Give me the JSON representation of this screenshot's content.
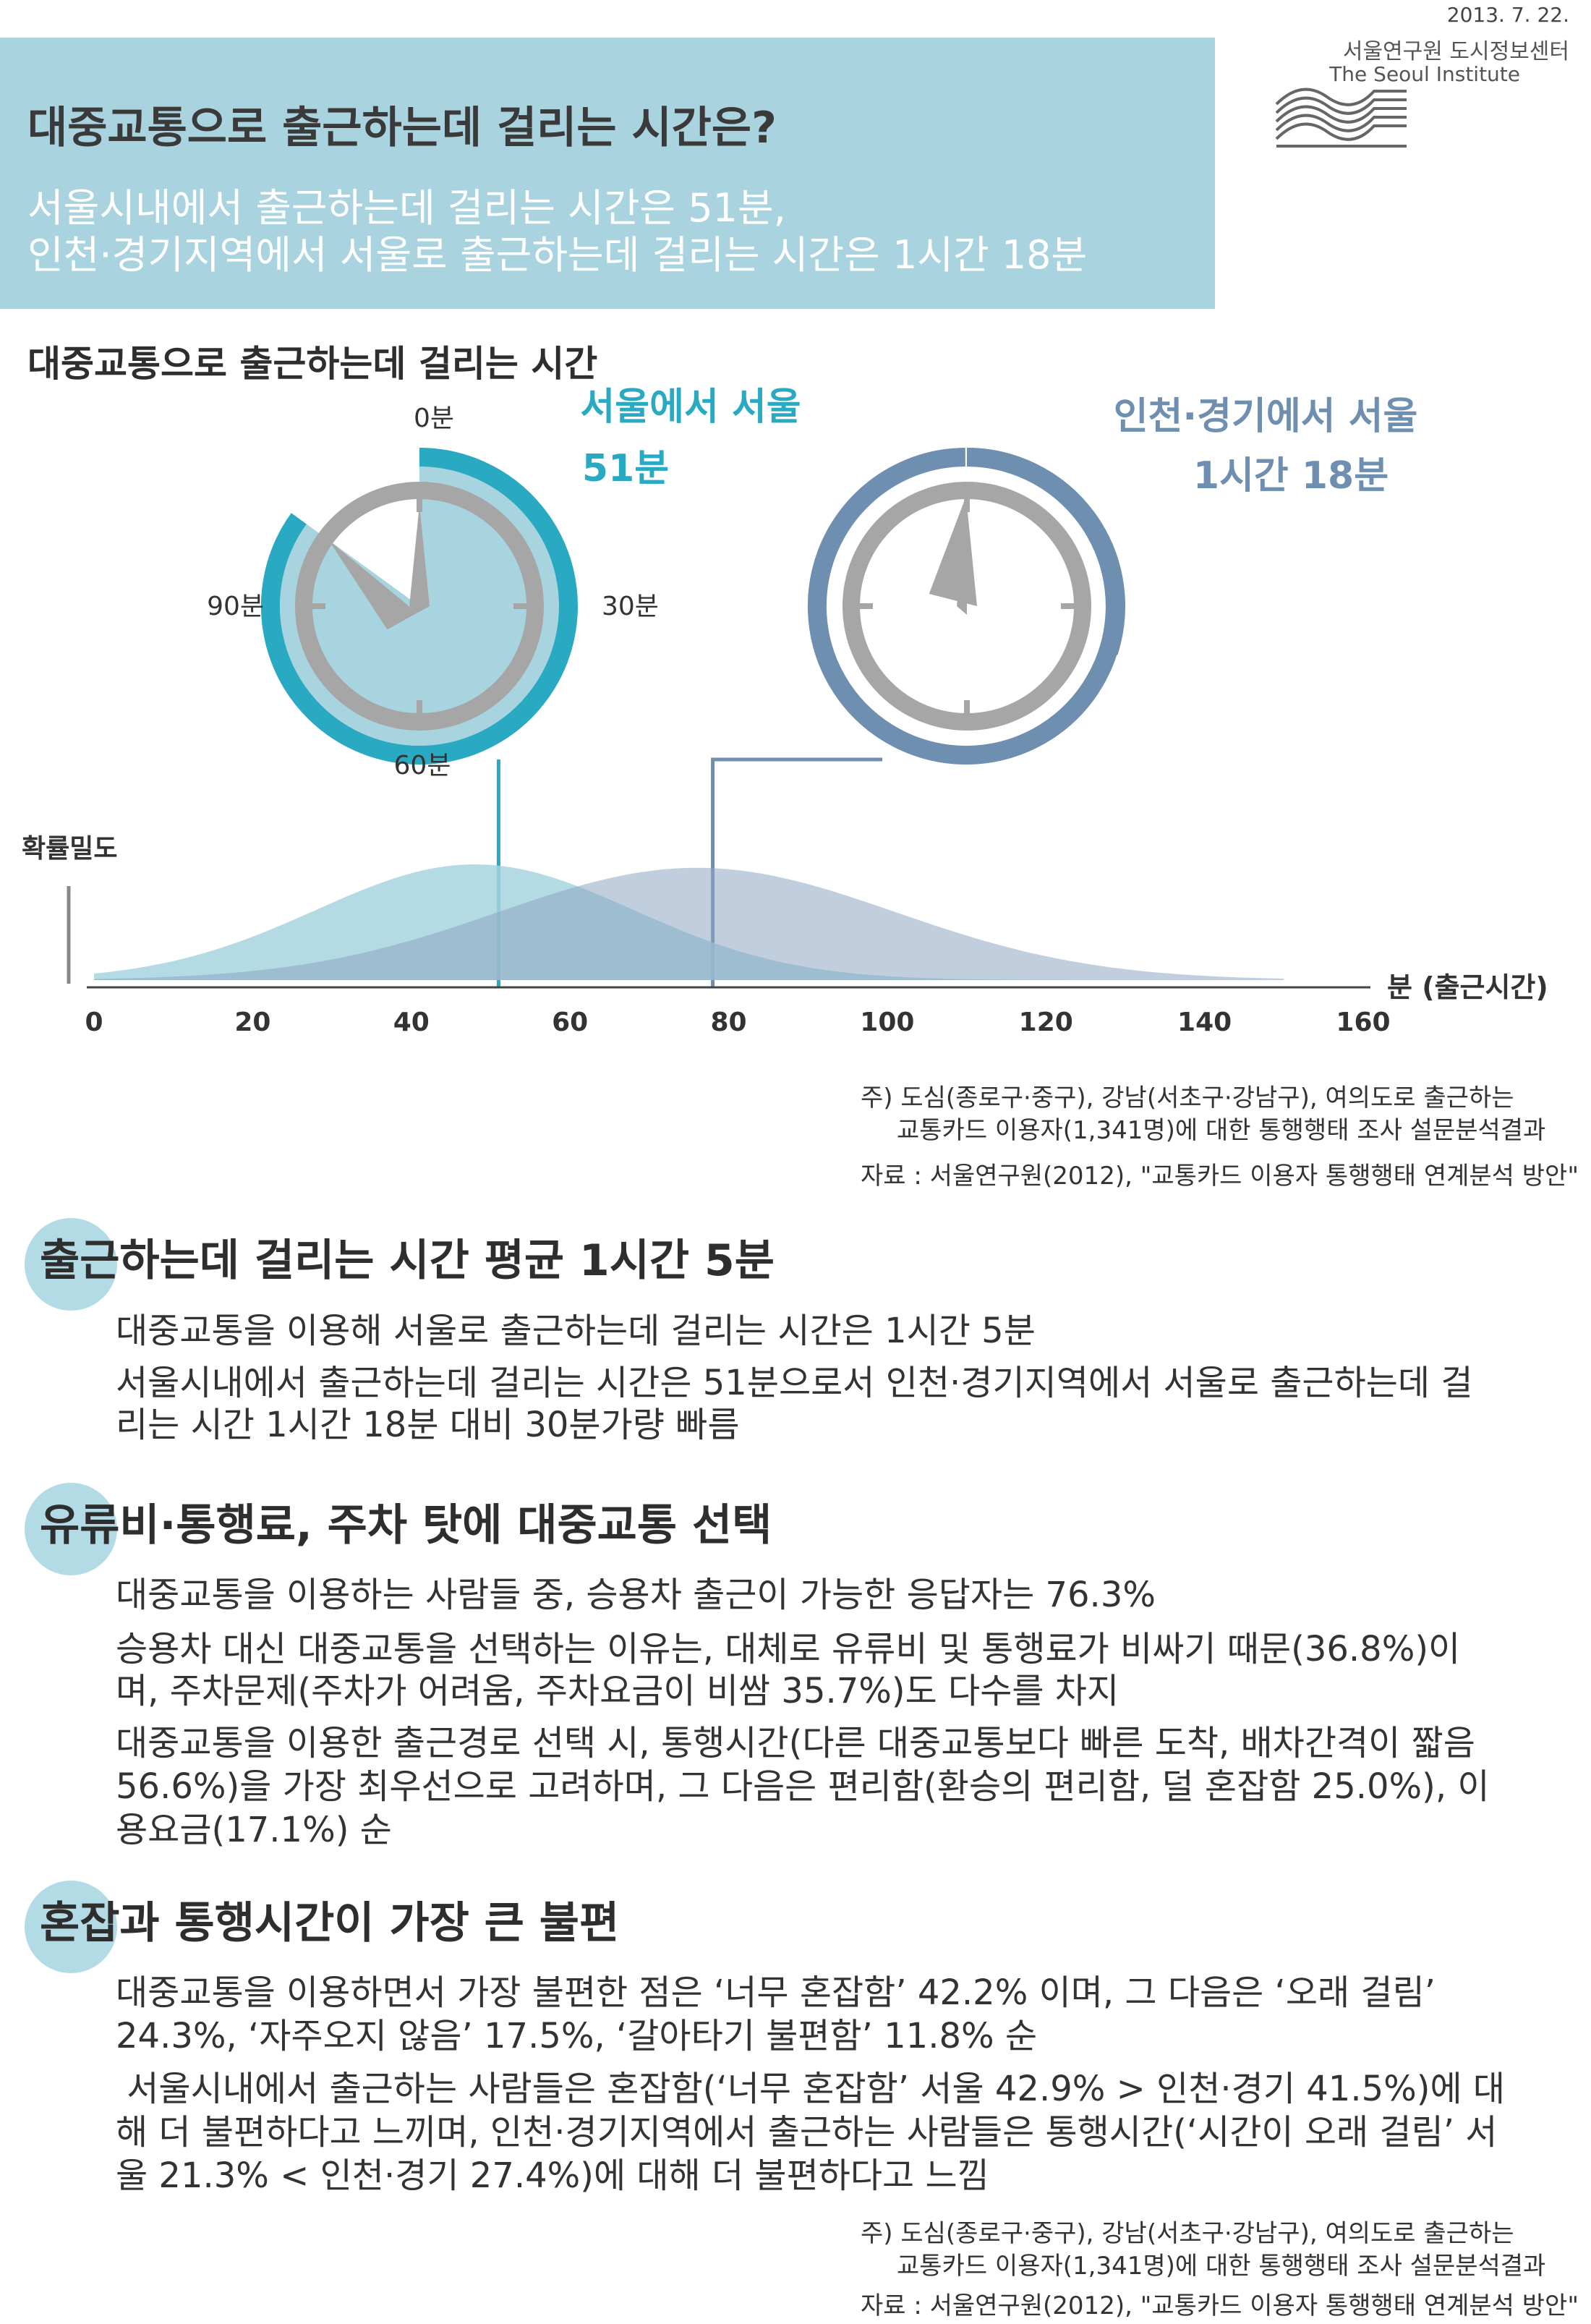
{
  "header": {
    "title": "대중교통으로 출근하는데 걸리는 시간은?",
    "subtitle_lines": [
      "서울시내에서 출근하는데 걸리는 시간은 51분,",
      "인천·경기지역에서 서울로 출근하는데 걸리는 시간은 1시간 18분"
    ],
    "date": "2013. 7. 22.",
    "org_korean": "서울연구원 도시정보센터",
    "org_english": "The Seoul Institute"
  },
  "colors": {
    "header_bg": "#a9d4df",
    "seoul": "#2aa9c2",
    "seoul_light": "#a7d4de",
    "incheon": "#6f8fb0",
    "incheon_light": "#b2c3d8",
    "clock_gray": "#a6a6a6",
    "section_circle": "#b3dbe5"
  },
  "chart_data": [
    {
      "type": "clock",
      "labels": {
        "0": "0분",
        "30": "30분",
        "60": "60분",
        "90": "90분"
      },
      "series": [
        {
          "name": "서울에서 서울",
          "value_label": "51분",
          "minutes": 51
        },
        {
          "name": "인천·경기에서 서울",
          "value_label": "1시간 18분",
          "minutes": 78
        }
      ]
    },
    {
      "type": "area",
      "title": "대중교통으로 출근하는데 걸리는 시간",
      "ylabel": "확률밀도",
      "xlabel": "분 (출근시간)",
      "xlim": [
        0,
        160
      ],
      "x_ticks": [
        0,
        20,
        40,
        60,
        80,
        100,
        120,
        140,
        160
      ],
      "series": [
        {
          "name": "서울에서 서울",
          "mean": 51,
          "peak_x": 48,
          "sd": 20,
          "x_range": [
            0,
            150
          ],
          "relative_peak": 1.0
        },
        {
          "name": "인천·경기에서 서울",
          "mean": 78,
          "peak_x": 76,
          "sd": 25,
          "x_range": [
            0,
            150
          ],
          "relative_peak": 0.97
        }
      ]
    }
  ],
  "notes": {
    "chart_note_1": "주) 도심(종로구·중구), 강남(서초구·강남구), 여의도로 출근하는",
    "chart_note_2": "교통카드 이용자(1,341명)에 대한 통행행태 조사 설문분석결과",
    "chart_source": "자료 : 서울연구원(2012), \"교통카드 이용자 통행행태 연계분석 방안\""
  },
  "sections": [
    {
      "title": "출근하는데 걸리는 시간 평균 1시간 5분",
      "lines": [
        "대중교통을 이용해 서울로 출근하는데 걸리는 시간은 1시간 5분",
        "서울시내에서 출근하는데 걸리는 시간은 51분으로서 인천·경기지역에서 서울로 출근하는데 걸",
        "리는 시간 1시간 18분 대비 30분가량 빠름"
      ]
    },
    {
      "title": "유류비·통행료, 주차 탓에 대중교통 선택",
      "lines": [
        "대중교통을 이용하는 사람들 중, 승용차 출근이 가능한 응답자는 76.3%",
        "승용차 대신 대중교통을 선택하는 이유는, 대체로 유류비 및 통행료가 비싸기 때문(36.8%)이",
        "며, 주차문제(주차가 어려움, 주차요금이 비쌈 35.7%)도 다수를 차지",
        "대중교통을 이용한 출근경로 선택 시, 통행시간(다른 대중교통보다 빠른 도착, 배차간격이 짧음",
        "56.6%)을 가장 최우선으로 고려하며, 그 다음은 편리함(환승의 편리함, 덜 혼잡함 25.0%), 이",
        "용요금(17.1%) 순"
      ]
    },
    {
      "title": "혼잡과 통행시간이 가장 큰 불편",
      "lines": [
        "대중교통을 이용하면서 가장 불편한 점은 ‘너무 혼잡함’ 42.2% 이며, 그 다음은 ‘오래 걸림’",
        "24.3%, ‘자주오지 않음’ 17.5%, ‘갈아타기 불편함’ 11.8% 순",
        " 서울시내에서 출근하는 사람들은 혼잡함(‘너무 혼잡함’ 서울 42.9% > 인천·경기 41.5%)에 대",
        "해 더 불편하다고 느끼며, 인천·경기지역에서 출근하는 사람들은 통행시간(‘시간이 오래 걸림’ 서",
        "울 21.3% < 인천·경기 27.4%)에 대해 더 불편하다고 느낌"
      ]
    }
  ],
  "footer": {
    "note_1": "주) 도심(종로구·중구), 강남(서초구·강남구), 여의도로 출근하는",
    "note_2": "교통카드 이용자(1,341명)에 대한 통행행태 조사 설문분석결과",
    "source": "자료 : 서울연구원(2012), \"교통카드 이용자 통행행태 연계분석 방안\""
  }
}
